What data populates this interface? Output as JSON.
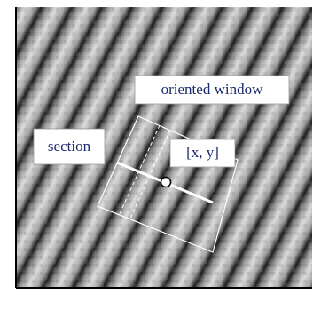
{
  "labels": {
    "oriented_window": "oriented window",
    "section": "section",
    "point": "[x, y]"
  }
}
